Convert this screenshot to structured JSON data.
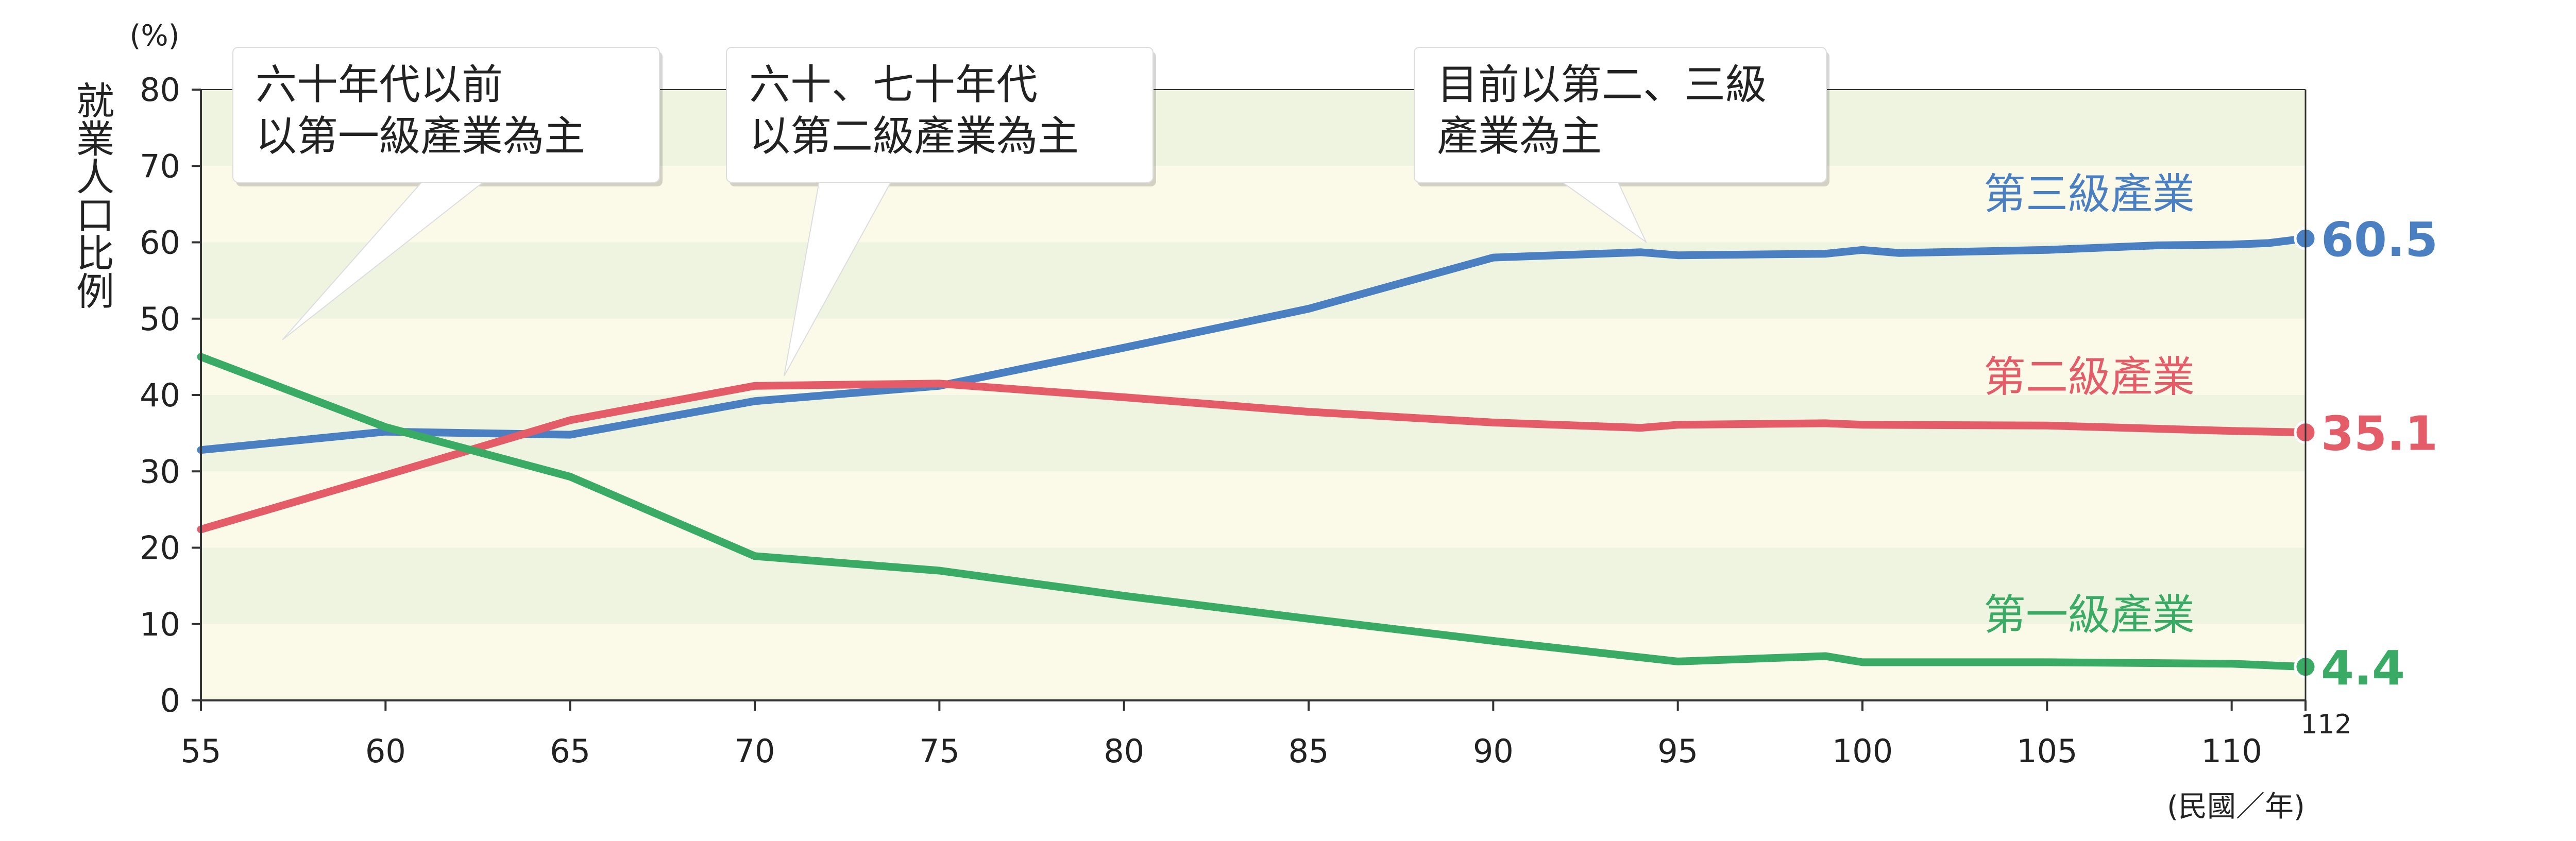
{
  "chart_data": {
    "type": "line",
    "title": "",
    "ylabel": "就業人口比例",
    "y_unit": "(%)",
    "xlabel": "(民國／年)",
    "xlim": [
      55,
      112
    ],
    "ylim": [
      0,
      80
    ],
    "x_ticks": [
      55,
      60,
      65,
      70,
      75,
      80,
      85,
      90,
      95,
      100,
      105,
      110,
      112
    ],
    "y_ticks": [
      0,
      10,
      20,
      30,
      40,
      50,
      60,
      70,
      80
    ],
    "grid": "horizontal alternating bands",
    "colors": {
      "band_light": "#fbfae9",
      "band_green": "#eef4df",
      "axis": "#333333"
    },
    "series": [
      {
        "name": "第三級產業",
        "color": "#4a7fc1",
        "end_label": "60.5",
        "points": [
          [
            55,
            32.8
          ],
          [
            60,
            35.2
          ],
          [
            65,
            34.8
          ],
          [
            70,
            39.2
          ],
          [
            75,
            41.2
          ],
          [
            80,
            46.2
          ],
          [
            85,
            51.3
          ],
          [
            90,
            58.0
          ],
          [
            94,
            58.7
          ],
          [
            95,
            58.3
          ],
          [
            99,
            58.5
          ],
          [
            100,
            59.0
          ],
          [
            101,
            58.6
          ],
          [
            105,
            59.0
          ],
          [
            108,
            59.6
          ],
          [
            110,
            59.7
          ],
          [
            111,
            59.9
          ],
          [
            112,
            60.5
          ]
        ]
      },
      {
        "name": "第二級產業",
        "color": "#e45c68",
        "end_label": "35.1",
        "points": [
          [
            55,
            22.4
          ],
          [
            60,
            29.5
          ],
          [
            65,
            36.7
          ],
          [
            70,
            41.2
          ],
          [
            75,
            41.5
          ],
          [
            80,
            39.7
          ],
          [
            85,
            37.8
          ],
          [
            90,
            36.4
          ],
          [
            94,
            35.7
          ],
          [
            95,
            36.1
          ],
          [
            99,
            36.3
          ],
          [
            100,
            36.1
          ],
          [
            105,
            36.0
          ],
          [
            110,
            35.3
          ],
          [
            112,
            35.1
          ]
        ]
      },
      {
        "name": "第一級產業",
        "color": "#3aab64",
        "end_label": "4.4",
        "points": [
          [
            55,
            45.0
          ],
          [
            60,
            35.8
          ],
          [
            65,
            29.3
          ],
          [
            70,
            18.9
          ],
          [
            75,
            17.0
          ],
          [
            80,
            13.7
          ],
          [
            85,
            10.7
          ],
          [
            90,
            7.8
          ],
          [
            95,
            5.1
          ],
          [
            99,
            5.8
          ],
          [
            100,
            5.0
          ],
          [
            105,
            5.0
          ],
          [
            110,
            4.8
          ],
          [
            112,
            4.4
          ]
        ]
      }
    ],
    "annotations": [
      {
        "lines": [
          "六十年代以前",
          "以第一級產業為主"
        ]
      },
      {
        "lines": [
          "六十、七十年代",
          "以第二級產業為主"
        ]
      },
      {
        "lines": [
          "目前以第二、三級",
          "產業為主"
        ]
      }
    ]
  }
}
